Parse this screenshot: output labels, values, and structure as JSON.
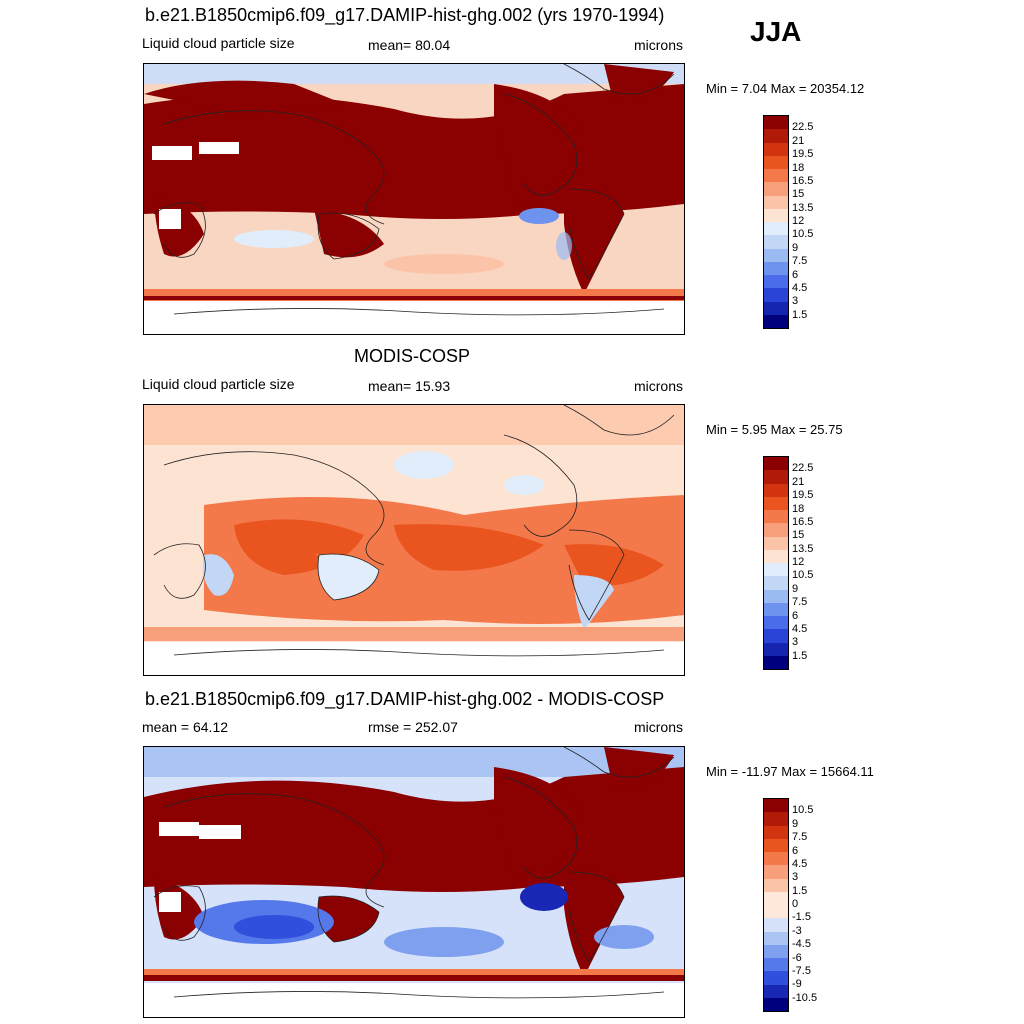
{
  "season": "JJA",
  "panels": [
    {
      "title": "b.e21.B1850cmip6.f09_g17.DAMIP-hist-ghg.002 (yrs 1970-1994)",
      "left_label": "Liquid cloud particle size",
      "center_label": "mean=  80.04",
      "right_label": "microns",
      "minmax": "Min =   7.04 Max = 20354.12",
      "colorbar_labels": [
        "22.5",
        "21",
        "19.5",
        "18",
        "16.5",
        "15",
        "13.5",
        "12",
        "10.5",
        "9",
        "7.5",
        "6",
        "4.5",
        "3",
        "1.5"
      ],
      "colorbar_colors": [
        "#8b0000",
        "#b01a06",
        "#d23410",
        "#e9541f",
        "#f3784a",
        "#f79f7a",
        "#fbc4a8",
        "#fde3d2",
        "#e1edfb",
        "#c2d6f6",
        "#9bbaf2",
        "#6e93ee",
        "#4a6cea",
        "#2a44d8",
        "#1625b0",
        "#00007f"
      ]
    },
    {
      "title": "MODIS-COSP",
      "left_label": "Liquid cloud particle size",
      "center_label": "mean=  15.93",
      "right_label": "microns",
      "minmax": "Min =   5.95 Max =  25.75",
      "colorbar_labels": [
        "22.5",
        "21",
        "19.5",
        "18",
        "16.5",
        "15",
        "13.5",
        "12",
        "10.5",
        "9",
        "7.5",
        "6",
        "4.5",
        "3",
        "1.5"
      ],
      "colorbar_colors": [
        "#8b0000",
        "#b01a06",
        "#d23410",
        "#e9541f",
        "#f3784a",
        "#f79f7a",
        "#fbc4a8",
        "#fde3d2",
        "#e1edfb",
        "#c2d6f6",
        "#9bbaf2",
        "#6e93ee",
        "#4a6cea",
        "#2a44d8",
        "#1625b0",
        "#00007f"
      ]
    },
    {
      "title": "b.e21.B1850cmip6.f09_g17.DAMIP-hist-ghg.002 - MODIS-COSP",
      "left_label": "mean =  64.12",
      "center_label": "rmse = 252.07",
      "right_label": "microns",
      "minmax": "Min = -11.97 Max = 15664.11",
      "colorbar_labels": [
        "10.5",
        "9",
        "7.5",
        "6",
        "4.5",
        "3",
        "1.5",
        "0",
        "-1.5",
        "-3",
        "-4.5",
        "-6",
        "-7.5",
        "-9",
        "-10.5"
      ],
      "colorbar_colors": [
        "#8b0000",
        "#b01a06",
        "#d23410",
        "#e9541f",
        "#f3784a",
        "#f79f7a",
        "#fbc4a8",
        "#fde8da",
        "#fde8da",
        "#d5e2fa",
        "#aac4f4",
        "#7fa0ef",
        "#5578eb",
        "#2f4fdc",
        "#1828b4",
        "#00007f"
      ]
    }
  ]
}
